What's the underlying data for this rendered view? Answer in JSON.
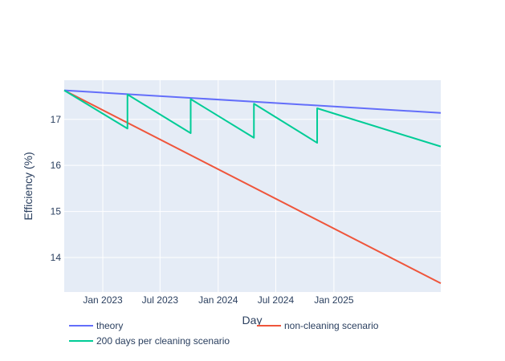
{
  "chart_data": {
    "type": "line",
    "title": "",
    "xlabel": "Day",
    "ylabel": "Efficiency (%)",
    "x_axis_type": "date",
    "xlim": [
      "2022-09-01",
      "2025-12-05"
    ],
    "ylim": [
      13.25,
      17.85
    ],
    "x_ticks": [
      {
        "date": "2023-01-01",
        "label": "Jan 2023"
      },
      {
        "date": "2023-07-01",
        "label": "Jul 2023"
      },
      {
        "date": "2024-01-01",
        "label": "Jan 2024"
      },
      {
        "date": "2024-07-01",
        "label": "Jul 2024"
      },
      {
        "date": "2025-01-01",
        "label": "Jan 2025"
      }
    ],
    "y_ticks": [
      14,
      15,
      16,
      17
    ],
    "grid": true,
    "legend_position": "bottom-left",
    "series": [
      {
        "name": "theory",
        "color": "#636efa",
        "x": [
          "2022-09-01",
          "2025-12-05"
        ],
        "y": [
          17.63,
          17.14
        ]
      },
      {
        "name": "non-cleaning scenario",
        "color": "#EF553B",
        "x": [
          "2022-09-01",
          "2025-12-05"
        ],
        "y": [
          17.63,
          13.44
        ]
      },
      {
        "name": "200 days per cleaning scenario",
        "color": "#00cc96",
        "x": [
          "2022-09-01",
          "2023-03-20",
          "2023-03-20",
          "2023-10-06",
          "2023-10-06",
          "2024-04-23",
          "2024-04-23",
          "2024-11-09",
          "2024-11-09",
          "2025-12-05"
        ],
        "y": [
          17.63,
          16.8,
          17.54,
          16.7,
          17.44,
          16.6,
          17.34,
          16.49,
          17.24,
          16.41
        ]
      }
    ]
  }
}
